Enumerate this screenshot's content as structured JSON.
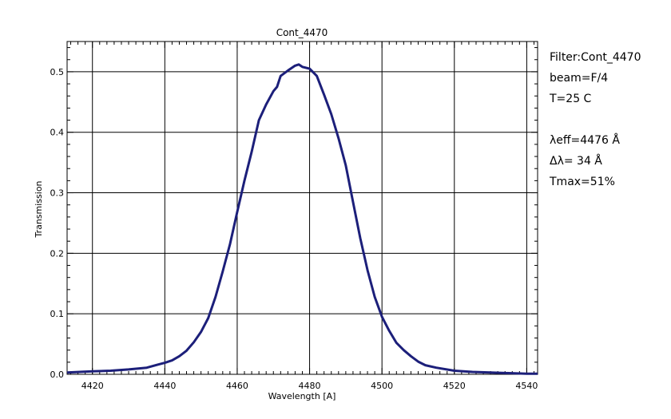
{
  "chart_data": {
    "type": "line",
    "title": "Cont_4470",
    "xlabel": "Wavelength [A]",
    "ylabel": "Transmission",
    "xlim": [
      4413,
      4543
    ],
    "ylim": [
      0,
      0.55
    ],
    "grid": true,
    "x_ticks": [
      4420,
      4440,
      4460,
      4480,
      4500,
      4520,
      4540
    ],
    "y_ticks": [
      0.0,
      0.1,
      0.2,
      0.3,
      0.4,
      0.5
    ],
    "x_tick_labels": [
      "4420",
      "4440",
      "4460",
      "4480",
      "4500",
      "4520",
      "4540"
    ],
    "y_tick_labels": [
      "0.0",
      "0.1",
      "0.2",
      "0.3",
      "0.4",
      "0.5"
    ],
    "series": [
      {
        "color": "#1c1f7a",
        "x": [
          4413,
          4420,
          4425,
          4430,
          4435,
          4438,
          4440,
          4442,
          4444,
          4446,
          4448,
          4450,
          4452,
          4454,
          4456,
          4458,
          4460,
          4462,
          4464,
          4466,
          4468,
          4470,
          4471,
          4472,
          4474,
          4476,
          4477,
          4478,
          4480,
          4482,
          4484,
          4486,
          4488,
          4490,
          4492,
          4494,
          4496,
          4498,
          4500,
          4502,
          4504,
          4506,
          4508,
          4510,
          4512,
          4515,
          4520,
          4525,
          4530,
          4535,
          4540,
          4543
        ],
        "y": [
          0.003,
          0.005,
          0.006,
          0.008,
          0.011,
          0.016,
          0.019,
          0.023,
          0.03,
          0.039,
          0.053,
          0.07,
          0.093,
          0.128,
          0.17,
          0.215,
          0.268,
          0.32,
          0.368,
          0.42,
          0.446,
          0.468,
          0.475,
          0.493,
          0.502,
          0.51,
          0.512,
          0.508,
          0.505,
          0.493,
          0.462,
          0.43,
          0.39,
          0.345,
          0.285,
          0.225,
          0.172,
          0.128,
          0.095,
          0.072,
          0.052,
          0.04,
          0.03,
          0.021,
          0.015,
          0.011,
          0.006,
          0.004,
          0.003,
          0.002,
          0.001,
          0.001
        ]
      }
    ]
  },
  "info": {
    "filter": "Filter:Cont_4470",
    "beam": "beam=F/4",
    "temp": "T=25 C",
    "leff": "λeff=4476 Å",
    "dl": "Δλ= 34 Å",
    "tmax": "Tmax=51%"
  }
}
